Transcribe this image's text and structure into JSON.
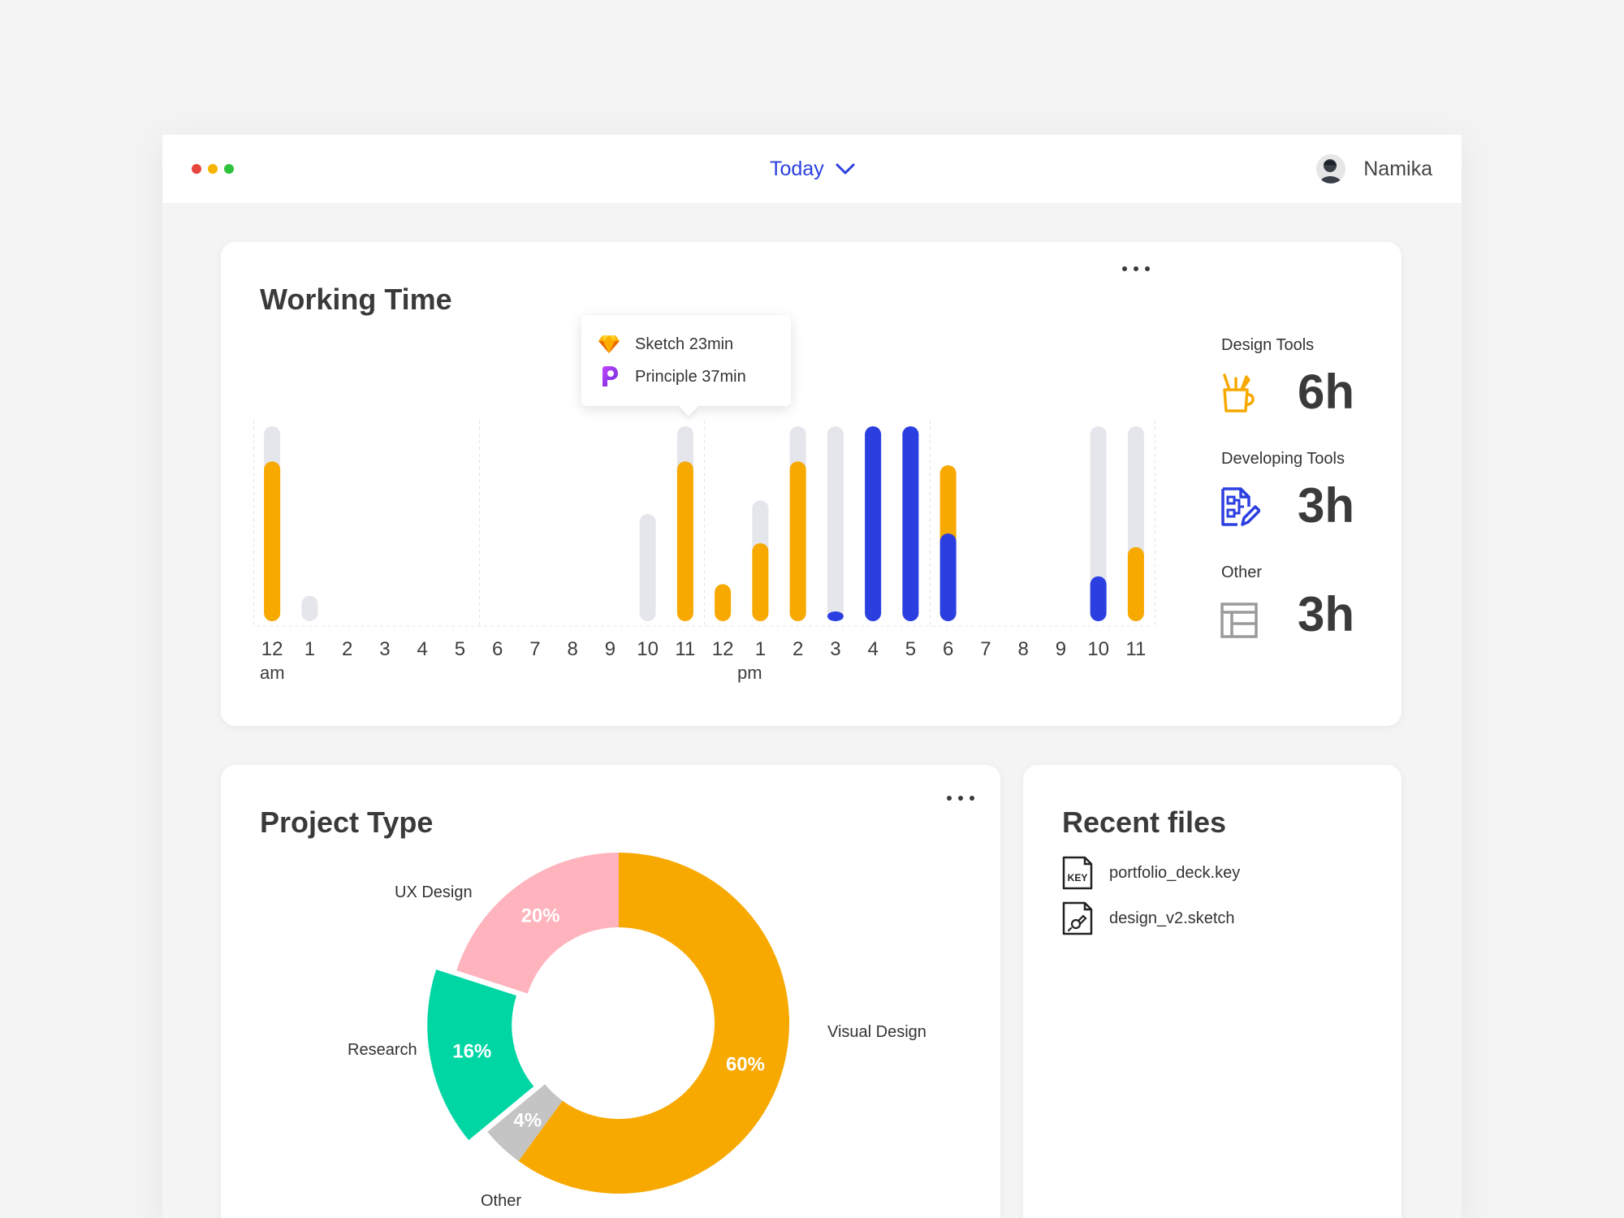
{
  "titlebar": {
    "traffic_lights": [
      "#e8453c",
      "#f5b400",
      "#2ec23c"
    ],
    "period": "Today",
    "user_name": "Namika"
  },
  "working_time": {
    "title": "Working Time",
    "tooltip": [
      {
        "icon": "sketch-icon",
        "text": "Sketch 23min"
      },
      {
        "icon": "principle-icon",
        "text": "Principle 37min"
      }
    ],
    "stats": [
      {
        "title": "Design Tools",
        "value": "6h",
        "icon": "design-tools-mug-icon",
        "color": "#f7a900"
      },
      {
        "title": "Developing Tools",
        "value": "3h",
        "icon": "developing-tools-icon",
        "color": "#2b3fe0"
      },
      {
        "title": "Other",
        "value": "3h",
        "icon": "other-layout-icon",
        "color": "#9a9a9a"
      }
    ],
    "am_label": "am",
    "pm_label": "pm"
  },
  "chart_data": {
    "type": "bar",
    "categories": [
      "12",
      "1",
      "2",
      "3",
      "4",
      "5",
      "6",
      "7",
      "8",
      "9",
      "10",
      "11",
      "12",
      "1",
      "2",
      "3",
      "4",
      "5",
      "6",
      "7",
      "8",
      "9",
      "10",
      "11"
    ],
    "series": [
      {
        "color": "#f7a900",
        "values": [
          0.82,
          0,
          0,
          0,
          0,
          0,
          0,
          0,
          0,
          0,
          0,
          0.82,
          0.19,
          0.4,
          0.82,
          0,
          0,
          0,
          0.35,
          0,
          0,
          0,
          0,
          0.38
        ]
      },
      {
        "color": "#2b3fe0",
        "values": [
          0,
          0,
          0,
          0,
          0,
          0,
          0,
          0,
          0,
          0,
          0,
          0,
          0,
          0,
          0,
          0.05,
          1.0,
          1.0,
          0.45,
          0,
          0,
          0,
          0.23,
          0
        ]
      },
      {
        "color": "#e5e5ec",
        "values": [
          1,
          0.13,
          0,
          0,
          0,
          0,
          0,
          0,
          0,
          0,
          0.55,
          1,
          0,
          0.62,
          1,
          1,
          1,
          1,
          0,
          0,
          0,
          0,
          1,
          1
        ]
      }
    ],
    "ylim": [
      0,
      1
    ],
    "grid": false,
    "legend": "none"
  },
  "project_type": {
    "title": "Project Type",
    "chart": {
      "type": "pie",
      "slices": [
        {
          "label": "Visual Design",
          "value": 60,
          "display": "60%",
          "color": "#f7a900"
        },
        {
          "label": "Other",
          "value": 4,
          "display": "4%",
          "color": "#c4c4c4"
        },
        {
          "label": "Research",
          "value": 16,
          "display": "16%",
          "color": "#00d6a4"
        },
        {
          "label": "UX Design",
          "value": 20,
          "display": "20%",
          "color": "#ffb3bd"
        }
      ]
    }
  },
  "recent_files": {
    "title": "Recent files",
    "files": [
      {
        "name": "portfolio_deck.key",
        "icon": "keynote-file-icon"
      },
      {
        "name": "design_v2.sketch",
        "icon": "sketch-file-icon"
      }
    ]
  }
}
